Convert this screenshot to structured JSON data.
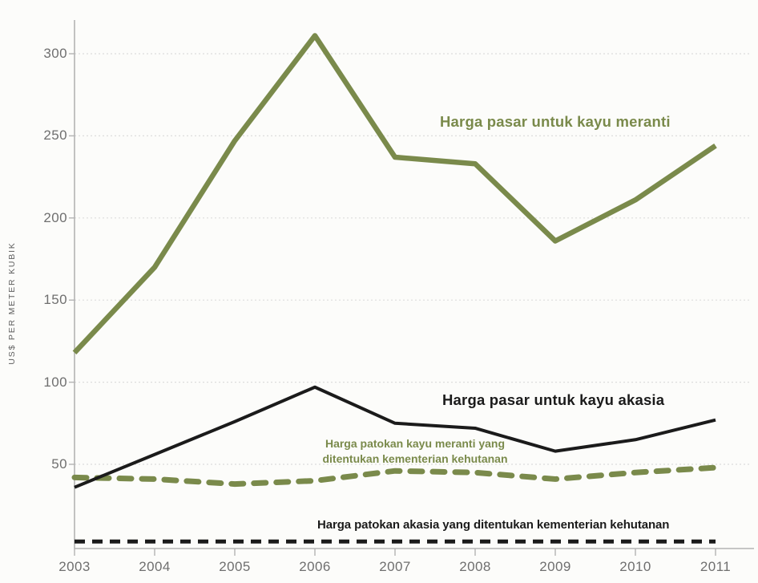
{
  "chart_data": {
    "type": "line",
    "title": "",
    "xlabel": "",
    "ylabel": "US$ PER METER KUBIK",
    "categories": [
      "2003",
      "2004",
      "2005",
      "2006",
      "2007",
      "2008",
      "2009",
      "2010",
      "2011"
    ],
    "y_ticks": [
      50,
      100,
      150,
      200,
      250,
      300
    ],
    "ylim": [
      0,
      320
    ],
    "grid": "horizontal dotted lines at each y tick",
    "legend_position": "inline annotations next to lines",
    "series": [
      {
        "name": "Harga pasar untuk kayu meranti",
        "style": "solid",
        "color": "#7a8a4b",
        "values": [
          118,
          170,
          247,
          311,
          237,
          233,
          186,
          211,
          244
        ]
      },
      {
        "name": "Harga pasar untuk kayu akasia",
        "style": "solid",
        "color": "#1b1b1b",
        "values": [
          36,
          56,
          76,
          97,
          75,
          72,
          58,
          65,
          77
        ]
      },
      {
        "name": "Harga patokan kayu meranti yang ditentukan kementerian kehutanan",
        "style": "dashed",
        "color": "#7a8a4b",
        "values": [
          42,
          41,
          38,
          40,
          46,
          45,
          41,
          45,
          48
        ]
      },
      {
        "name": "Harga patokan akasia yang ditentukan kementerian kehutanan",
        "style": "dashed",
        "color": "#1b1b1b",
        "values": [
          3,
          3,
          3,
          3,
          3,
          3,
          3,
          3,
          3
        ]
      }
    ]
  },
  "labels": {
    "ylabel": "US$ PER METER KUBIK",
    "meranti_market": "Harga pasar untuk kayu meranti",
    "akasia_market": "Harga pasar untuk kayu akasia",
    "meranti_patokan_line1": "Harga patokan kayu meranti yang",
    "meranti_patokan_line2": "ditentukan kementerian kehutanan",
    "akasia_patokan": "Harga patokan akasia yang ditentukan kementerian kehutanan"
  },
  "colors": {
    "olive": "#7a8a4b",
    "black": "#1b1b1b",
    "grid": "#dcdcdc",
    "axis": "#b3b3b3",
    "tick_text": "#6f6f6f",
    "background": "#fcfcfa"
  }
}
